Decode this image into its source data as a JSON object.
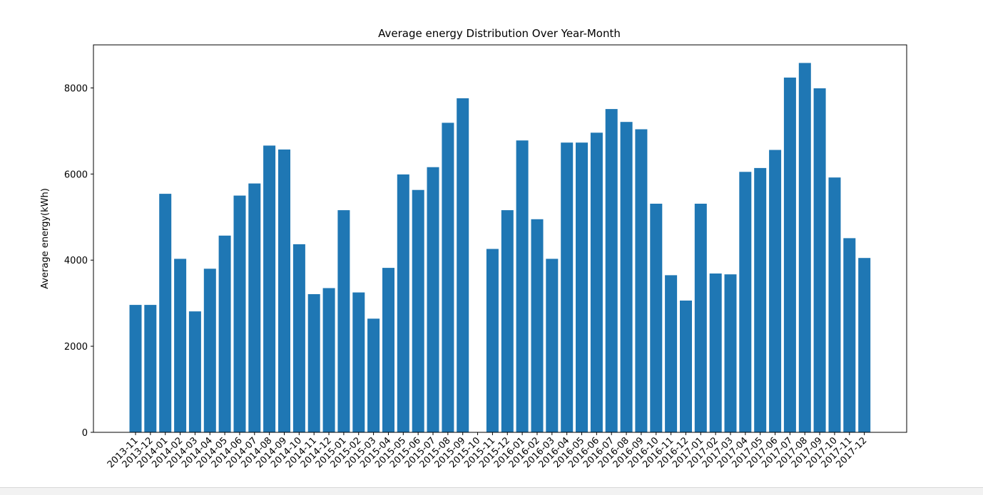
{
  "chart_data": {
    "type": "bar",
    "title": "Average energy Distribution Over Year-Month",
    "xlabel": "",
    "ylabel": "Average energy(kWh)",
    "ylim": [
      0,
      9000
    ],
    "yticks": [
      0,
      2000,
      4000,
      6000,
      8000
    ],
    "grid": false,
    "legend": "none",
    "bar_color": "#1f77b4",
    "categories": [
      "2013-11",
      "2013-12",
      "2014-01",
      "2014-02",
      "2014-03",
      "2014-04",
      "2014-05",
      "2014-06",
      "2014-07",
      "2014-08",
      "2014-09",
      "2014-10",
      "2014-11",
      "2014-12",
      "2015-01",
      "2015-02",
      "2015-03",
      "2015-04",
      "2015-05",
      "2015-06",
      "2015-07",
      "2015-08",
      "2015-09",
      "2015-10",
      "2015-11",
      "2015-12",
      "2016-01",
      "2016-02",
      "2016-03",
      "2016-04",
      "2016-05",
      "2016-06",
      "2016-07",
      "2016-08",
      "2016-09",
      "2016-10",
      "2016-11",
      "2016-12",
      "2017-01",
      "2017-02",
      "2017-03",
      "2017-04",
      "2017-05",
      "2017-06",
      "2017-07",
      "2017-08",
      "2017-09",
      "2017-10",
      "2017-11",
      "2017-12"
    ],
    "values": [
      2960,
      2960,
      5540,
      4030,
      2810,
      3800,
      4570,
      5500,
      5780,
      6660,
      6570,
      4370,
      3210,
      3350,
      5160,
      3250,
      2640,
      3820,
      5990,
      5630,
      6160,
      7190,
      7760,
      0,
      4260,
      5160,
      6780,
      4950,
      4030,
      6730,
      6730,
      6960,
      7510,
      7210,
      7040,
      5310,
      3650,
      3060,
      5310,
      3690,
      3670,
      6050,
      6140,
      6560,
      8240,
      8580,
      7990,
      5920,
      4510,
      4050
    ]
  }
}
